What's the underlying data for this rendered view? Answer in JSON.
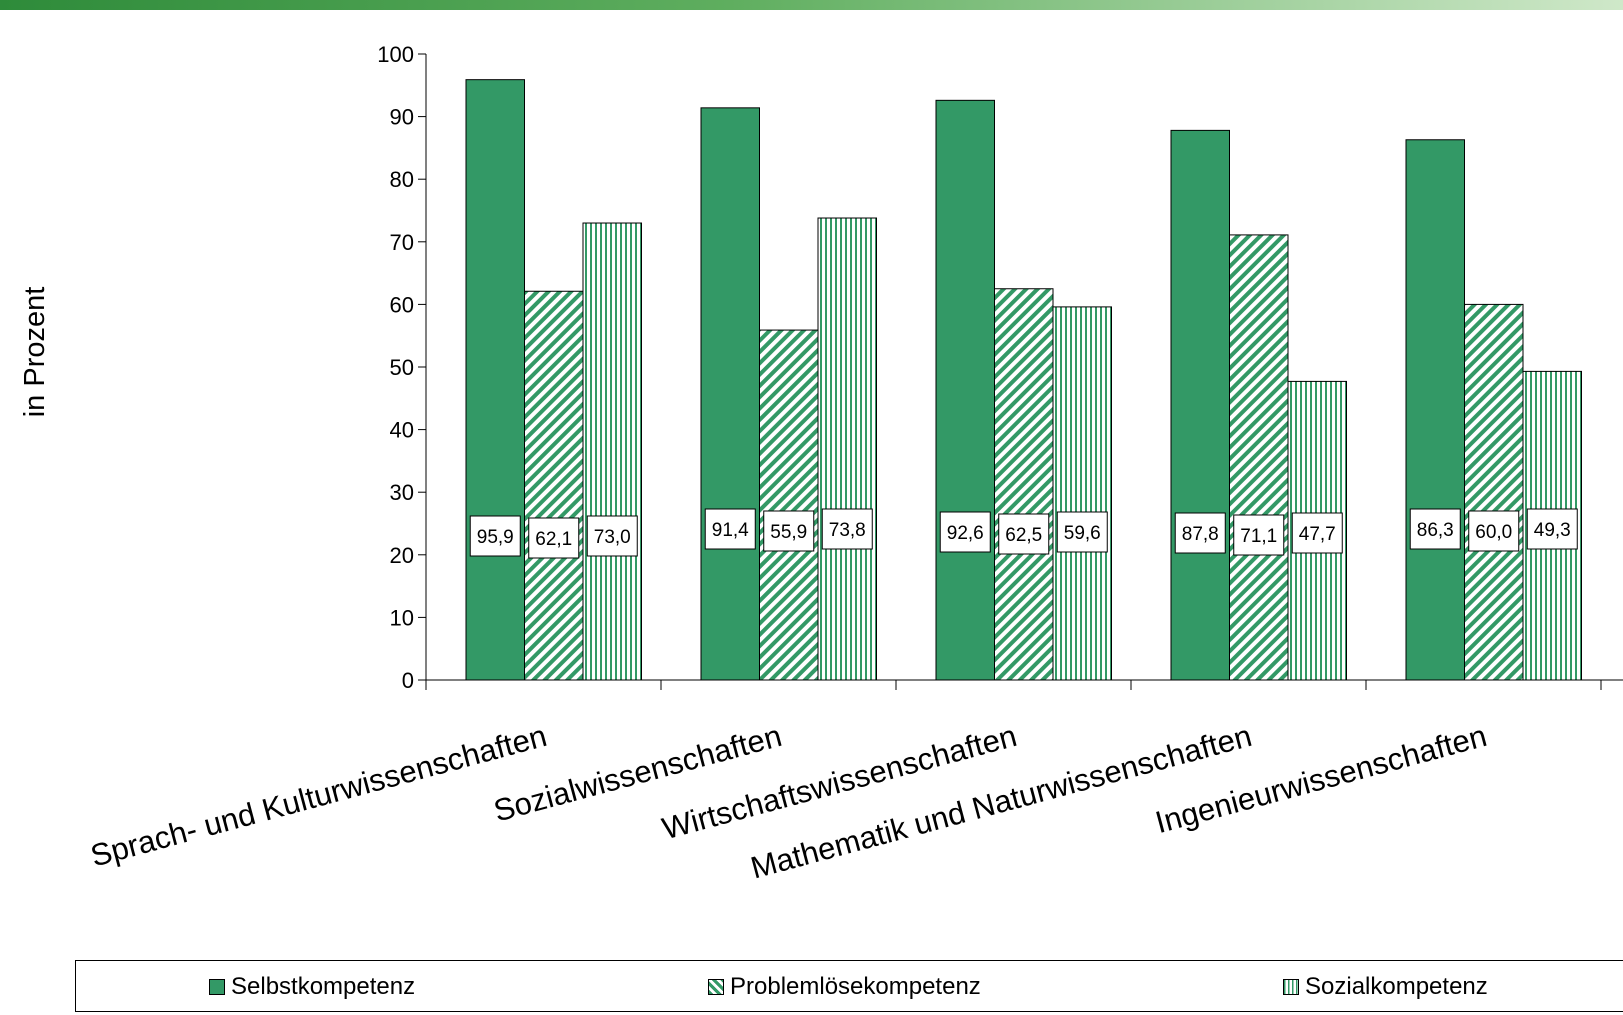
{
  "chart_data": {
    "type": "bar",
    "ylabel": "in Prozent",
    "ylim": [
      0,
      100
    ],
    "yticks": [
      "0",
      "10",
      "20",
      "30",
      "40",
      "50",
      "60",
      "70",
      "80",
      "90",
      "100"
    ],
    "categories": [
      "Sprach- und Kulturwissenschaften",
      "Sozialwissenschaften",
      "Wirtschaftswissenschaften",
      "Mathematik und Naturwissenschaften",
      "Ingenieurwissenschaften"
    ],
    "series": [
      {
        "name": "Selbstkompetenz",
        "pattern": "solid",
        "values": [
          95.9,
          91.4,
          92.6,
          87.8,
          86.3
        ],
        "labels": [
          "95,9",
          "91,4",
          "92,6",
          "87,8",
          "86,3"
        ]
      },
      {
        "name": "Problemlösekompetenz",
        "pattern": "diagonal",
        "values": [
          62.1,
          55.9,
          62.5,
          71.1,
          60.0
        ],
        "labels": [
          "62,1",
          "55,9",
          "62,5",
          "71,1",
          "60,0"
        ]
      },
      {
        "name": "Sozialkompetenz",
        "pattern": "vertical",
        "values": [
          73.0,
          73.8,
          59.6,
          47.7,
          49.3
        ],
        "labels": [
          "73,0",
          "73,8",
          "59,6",
          "47,7",
          "49,3"
        ]
      }
    ],
    "colors": {
      "bar": "#339966",
      "border": "#000000"
    },
    "legend_position": "bottom",
    "grid": false
  }
}
